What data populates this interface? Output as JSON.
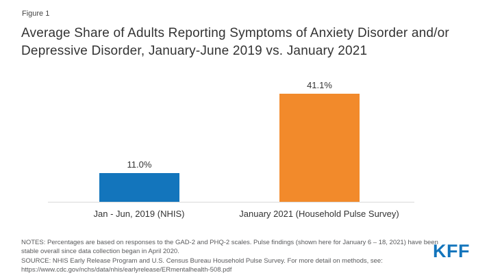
{
  "figure_label": "Figure 1",
  "title": "Average Share of Adults Reporting Symptoms of Anxiety Disorder and/or Depressive Disorder, January-June 2019 vs. January 2021",
  "chart_data": {
    "type": "bar",
    "title": "Average Share of Adults Reporting Symptoms of Anxiety Disorder and/or Depressive Disorder, January-June 2019 vs. January 2021",
    "categories": [
      "Jan - Jun, 2019 (NHIS)",
      "January 2021 (Household Pulse Survey)"
    ],
    "values": [
      11.0,
      41.1
    ],
    "value_labels": [
      "11.0%",
      "41.1%"
    ],
    "bar_colors": [
      "#1375bc",
      "#f28a2b"
    ],
    "xlabel": "",
    "ylabel": "",
    "ylim": [
      0,
      48
    ],
    "grid": false,
    "legend": false
  },
  "notes": {
    "notes_text": "NOTES: Percentages are based on responses to the GAD-2 and PHQ-2 scales. Pulse findings (shown here for January 6 – 18, 2021) have been stable overall since data collection began in April 2020.",
    "source_text": "SOURCE: NHIS Early Release Program and U.S. Census Bureau Household Pulse Survey.  For more detail on methods, see:",
    "source_url": "https://www.cdc.gov/nchs/data/nhis/earlyrelease/ERmentalhealth-508.pdf"
  },
  "logo_text": "KFF"
}
